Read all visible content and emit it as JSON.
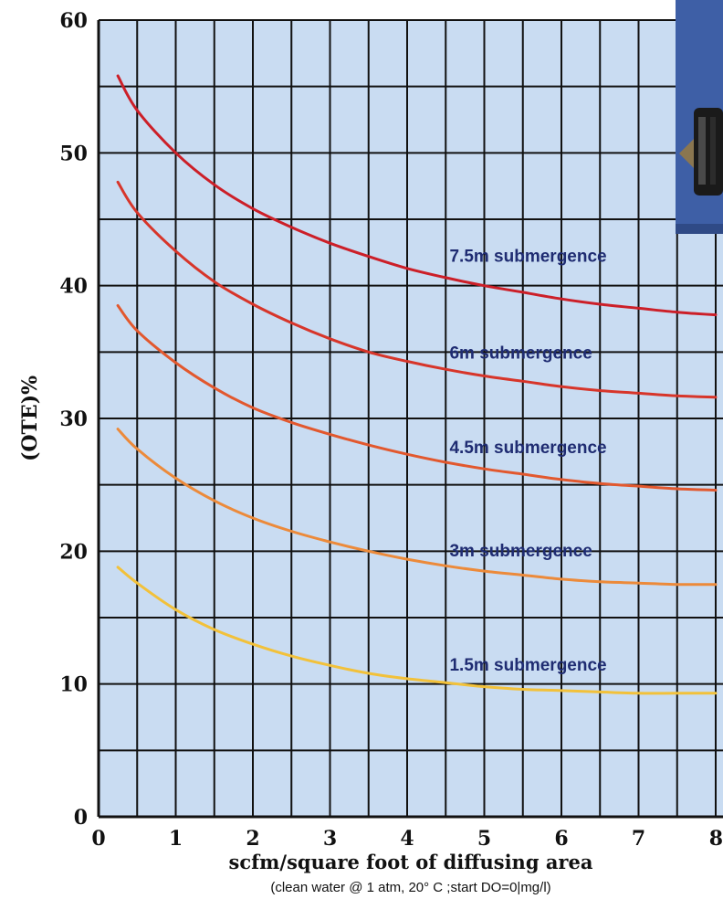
{
  "chart_data": {
    "type": "line",
    "xlabel": "scfm/square foot of diffusing area",
    "subtitle": "(clean water @ 1 atm, 20° C ;start DO=0|mg/l)",
    "ylabel": "(OTE)%",
    "xlim": [
      0,
      8
    ],
    "ylim": [
      0,
      60
    ],
    "x_ticks": [
      "0",
      "1",
      "2",
      "3",
      "4",
      "5",
      "6",
      "7",
      "8"
    ],
    "y_ticks": [
      "0",
      "10",
      "20",
      "30",
      "40",
      "50",
      "60"
    ],
    "grid": true,
    "background_color": "#c9dcf2",
    "grid_color": "#111111",
    "series": [
      {
        "name": "7.5m submergence",
        "color": "#cc1f28",
        "x": [
          0.25,
          0.5,
          1,
          1.5,
          2,
          2.5,
          3,
          3.5,
          4,
          4.5,
          5,
          5.5,
          6,
          6.5,
          7,
          7.5,
          8
        ],
        "y": [
          55.8,
          53.2,
          50.0,
          47.6,
          45.8,
          44.4,
          43.2,
          42.2,
          41.3,
          40.6,
          40.0,
          39.5,
          39.0,
          38.6,
          38.3,
          38.0,
          37.8
        ]
      },
      {
        "name": "6m submergence",
        "color": "#d7352a",
        "x": [
          0.25,
          0.5,
          1,
          1.5,
          2,
          2.5,
          3,
          3.5,
          4,
          4.5,
          5,
          5.5,
          6,
          6.5,
          7,
          7.5,
          8
        ],
        "y": [
          47.8,
          45.5,
          42.6,
          40.3,
          38.6,
          37.2,
          36.0,
          35.0,
          34.3,
          33.7,
          33.2,
          32.8,
          32.4,
          32.1,
          31.9,
          31.7,
          31.6
        ]
      },
      {
        "name": "4.5m submergence",
        "color": "#e2582e",
        "x": [
          0.25,
          0.5,
          1,
          1.5,
          2,
          2.5,
          3,
          3.5,
          4,
          4.5,
          5,
          5.5,
          6,
          6.5,
          7,
          7.5,
          8
        ],
        "y": [
          38.5,
          36.6,
          34.2,
          32.3,
          30.8,
          29.7,
          28.8,
          28.0,
          27.3,
          26.7,
          26.2,
          25.8,
          25.4,
          25.1,
          24.9,
          24.7,
          24.6
        ]
      },
      {
        "name": "3m submergence",
        "color": "#ec8a3a",
        "x": [
          0.25,
          0.5,
          1,
          1.5,
          2,
          2.5,
          3,
          3.5,
          4,
          4.5,
          5,
          5.5,
          6,
          6.5,
          7,
          7.5,
          8
        ],
        "y": [
          29.2,
          27.7,
          25.5,
          23.8,
          22.5,
          21.5,
          20.7,
          20.0,
          19.4,
          18.9,
          18.5,
          18.2,
          17.9,
          17.7,
          17.6,
          17.5,
          17.5
        ]
      },
      {
        "name": "1.5m submergence",
        "color": "#f2c13a",
        "x": [
          0.25,
          0.5,
          1,
          1.5,
          2,
          2.5,
          3,
          3.5,
          4,
          4.5,
          5,
          5.5,
          6,
          6.5,
          7,
          7.5,
          8
        ],
        "y": [
          18.8,
          17.6,
          15.6,
          14.1,
          13.0,
          12.1,
          11.4,
          10.8,
          10.4,
          10.1,
          9.8,
          9.6,
          9.5,
          9.4,
          9.3,
          9.3,
          9.3
        ]
      }
    ],
    "series_labels": [
      {
        "text": "7.5m  submergence",
        "x": 4.55,
        "y": 41.8
      },
      {
        "text": "6m  submergence",
        "x": 4.55,
        "y": 34.5
      },
      {
        "text": "4.5m  submergence",
        "x": 4.55,
        "y": 27.4
      },
      {
        "text": "3m  submergence",
        "x": 4.55,
        "y": 19.6
      },
      {
        "text": "1.5m  submergence",
        "x": 4.55,
        "y": 11.0
      }
    ]
  },
  "photo_inset": {
    "icon": "diffuser-photo-icon",
    "background_color": "#3e5fa6"
  }
}
